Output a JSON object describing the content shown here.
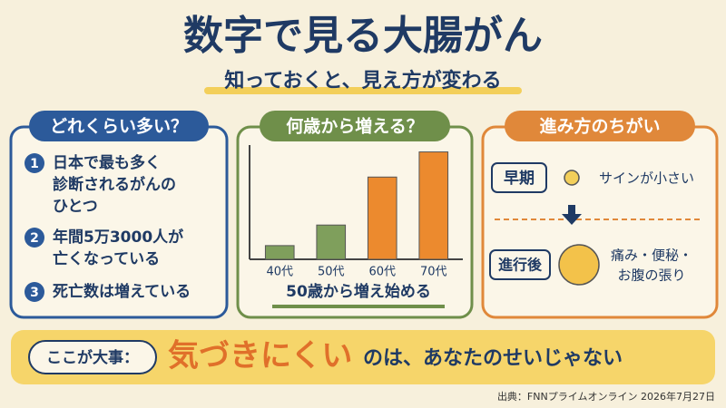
{
  "header": {
    "title": "数字で見る大腸がん",
    "subtitle": "知っておくと、見え方が変わる"
  },
  "left_panel": {
    "heading": "どれくらい多い？",
    "items": [
      {
        "number": "1",
        "lines": [
          "日本で最も多く",
          "診断されるがんの",
          "ひとつ"
        ]
      },
      {
        "number": "2",
        "lines": [
          "年間5万3000人が",
          "亡くなっている"
        ]
      },
      {
        "number": "3",
        "lines": [
          "死亡数は増えている"
        ]
      }
    ]
  },
  "chart_data": {
    "type": "bar",
    "title": "何歳から増える？",
    "categories": [
      "40代",
      "50代",
      "60代",
      "70代"
    ],
    "values": [
      12,
      30,
      72,
      94
    ],
    "colors": [
      "#7f9f5c",
      "#7f9f5c",
      "#ec8a2e",
      "#ec8a2e"
    ],
    "ylim": [
      0,
      100
    ],
    "caption": "50歳から増え始める"
  },
  "right_panel": {
    "heading": "進み方のちがい",
    "early": {
      "label": "早期",
      "text": "サインが小さい"
    },
    "advanced": {
      "label": "進行後",
      "lines": [
        "痛み・便秘・",
        "お腹の張り"
      ]
    }
  },
  "banner": {
    "tag": "ここが大事：",
    "emphasis": "気づきにくい",
    "text": "のは、あなたのせいじゃない"
  },
  "source": "出典：FNNプライムオンライン 2026年7月27日"
}
